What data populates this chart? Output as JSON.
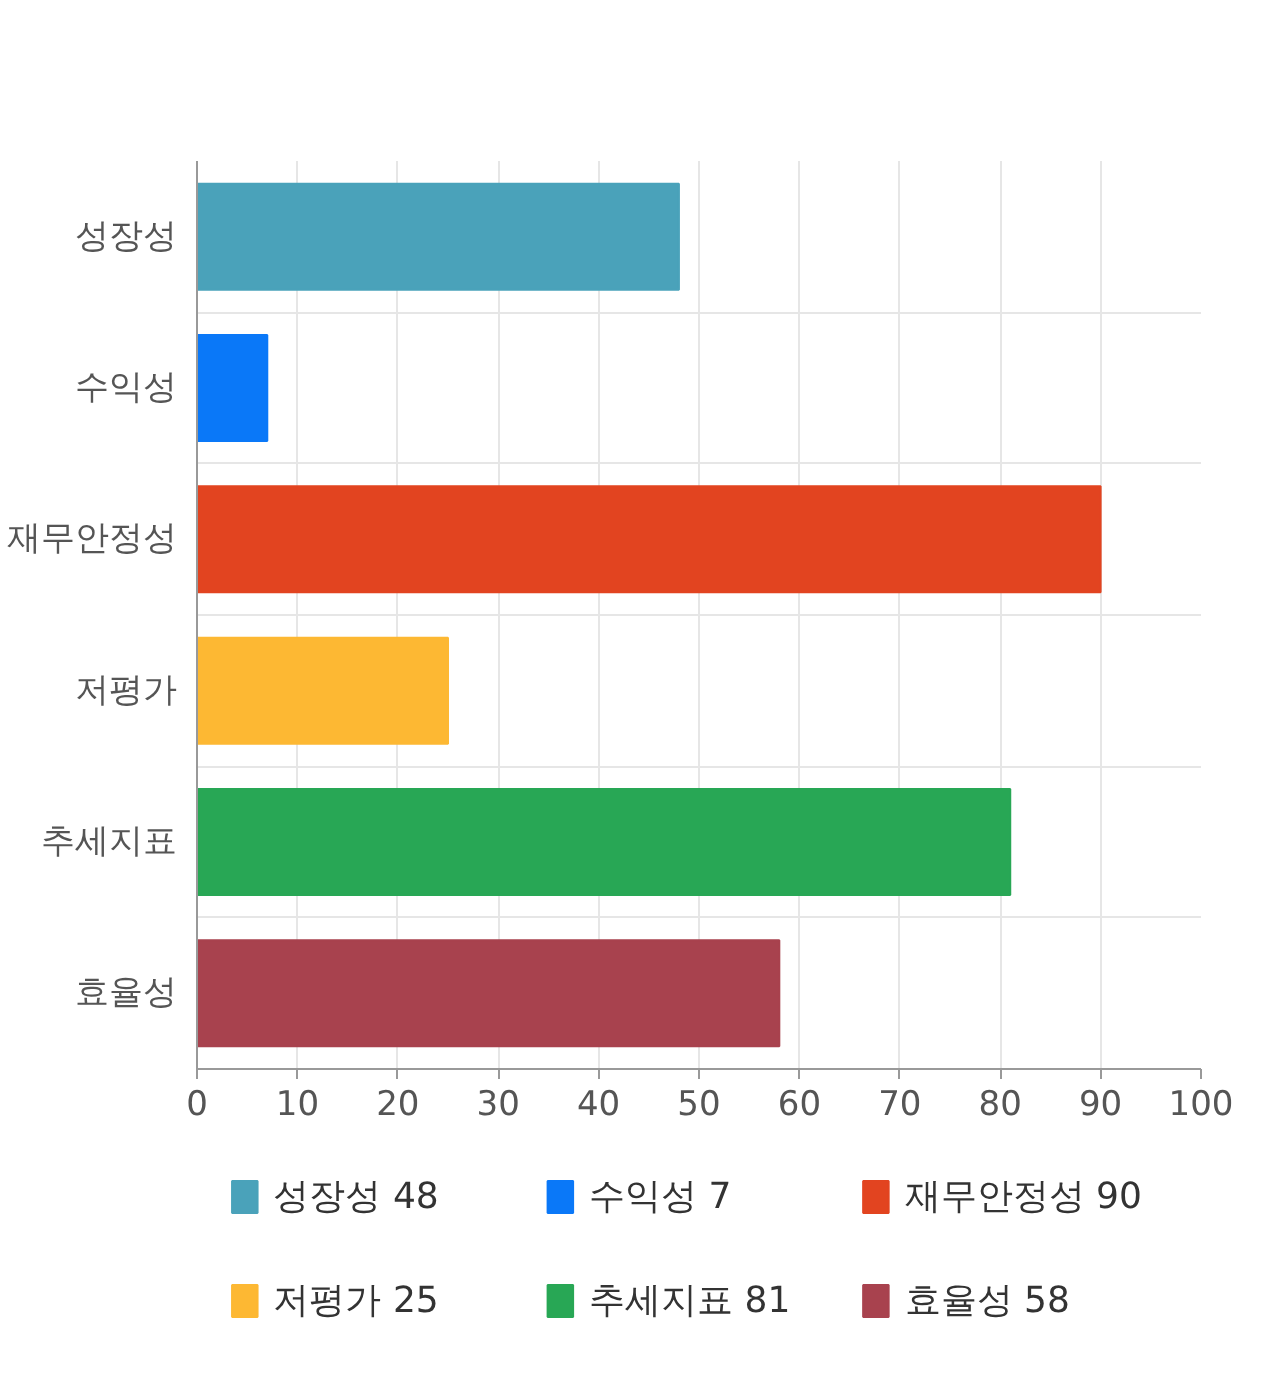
{
  "chart_data": {
    "type": "bar",
    "orientation": "horizontal",
    "categories": [
      "성장성",
      "수익성",
      "재무안정성",
      "저평가",
      "추세지표",
      "효율성"
    ],
    "series": [
      {
        "name": "성장성 48",
        "color": "#4aa2ba",
        "values": [
          48,
          null,
          null,
          null,
          null,
          null
        ]
      },
      {
        "name": "수익성 7",
        "color": "#0a78f8",
        "values": [
          null,
          7,
          null,
          null,
          null,
          null
        ]
      },
      {
        "name": "재무안정성 90",
        "color": "#e24420",
        "values": [
          null,
          null,
          90,
          null,
          null,
          null
        ]
      },
      {
        "name": "저평가 25",
        "color": "#fdb833",
        "values": [
          null,
          null,
          null,
          25,
          null,
          null
        ]
      },
      {
        "name": "추세지표 81",
        "color": "#28a755",
        "values": [
          null,
          null,
          null,
          null,
          81,
          null
        ]
      },
      {
        "name": "효율성 58",
        "color": "#a8424e",
        "values": [
          null,
          null,
          null,
          null,
          null,
          58
        ]
      }
    ],
    "xlim": [
      0,
      100
    ],
    "xticks": [
      0,
      10,
      20,
      30,
      40,
      50,
      60,
      70,
      80,
      90,
      100
    ],
    "grid": true,
    "legend": "bottom"
  }
}
